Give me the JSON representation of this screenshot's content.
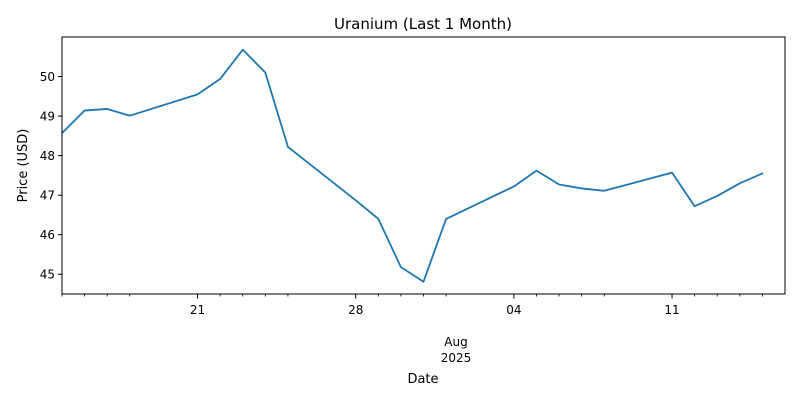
{
  "chart_data": {
    "type": "line",
    "title": "Uranium (Last 1 Month)",
    "xlabel": "Date",
    "ylabel": "Price (USD)",
    "grid": false,
    "line_color": "#1f77b4",
    "x_range": [
      "2025-07-15",
      "2025-08-16"
    ],
    "ylim": [
      44.5,
      51.0
    ],
    "y_ticks": [
      45,
      46,
      47,
      48,
      49,
      50
    ],
    "x_major_ticks": [
      {
        "date": "2025-07-21",
        "label": "21"
      },
      {
        "date": "2025-07-28",
        "label": "28"
      },
      {
        "date": "2025-08-04",
        "label": "04"
      },
      {
        "date": "2025-08-11",
        "label": "11"
      }
    ],
    "x_minor_ticks": [
      "2025-07-15",
      "2025-07-16",
      "2025-07-17",
      "2025-07-18",
      "2025-07-22",
      "2025-07-23",
      "2025-07-24",
      "2025-07-25",
      "2025-07-29",
      "2025-07-30",
      "2025-07-31",
      "2025-08-01",
      "2025-08-05",
      "2025-08-06",
      "2025-08-07",
      "2025-08-08",
      "2025-08-12",
      "2025-08-13",
      "2025-08-14",
      "2025-08-15"
    ],
    "x_secondary_label": {
      "date": "2025-08-01",
      "line1": "Aug",
      "line2": "2025"
    },
    "series": [
      {
        "x": [
          "2025-07-15",
          "2025-07-16",
          "2025-07-17",
          "2025-07-18",
          "2025-07-21",
          "2025-07-22",
          "2025-07-23",
          "2025-07-24",
          "2025-07-25",
          "2025-07-28",
          "2025-07-29",
          "2025-07-30",
          "2025-07-31",
          "2025-08-01",
          "2025-08-04",
          "2025-08-05",
          "2025-08-06",
          "2025-08-07",
          "2025-08-08",
          "2025-08-11",
          "2025-08-12",
          "2025-08-13",
          "2025-08-14",
          "2025-08-15"
        ],
        "values": [
          48.57,
          49.14,
          49.18,
          49.01,
          49.55,
          49.94,
          50.68,
          50.1,
          48.22,
          46.87,
          46.4,
          45.18,
          44.81,
          46.4,
          47.22,
          47.62,
          47.27,
          47.17,
          47.11,
          47.57,
          46.72,
          46.98,
          47.3,
          47.55
        ]
      }
    ]
  }
}
